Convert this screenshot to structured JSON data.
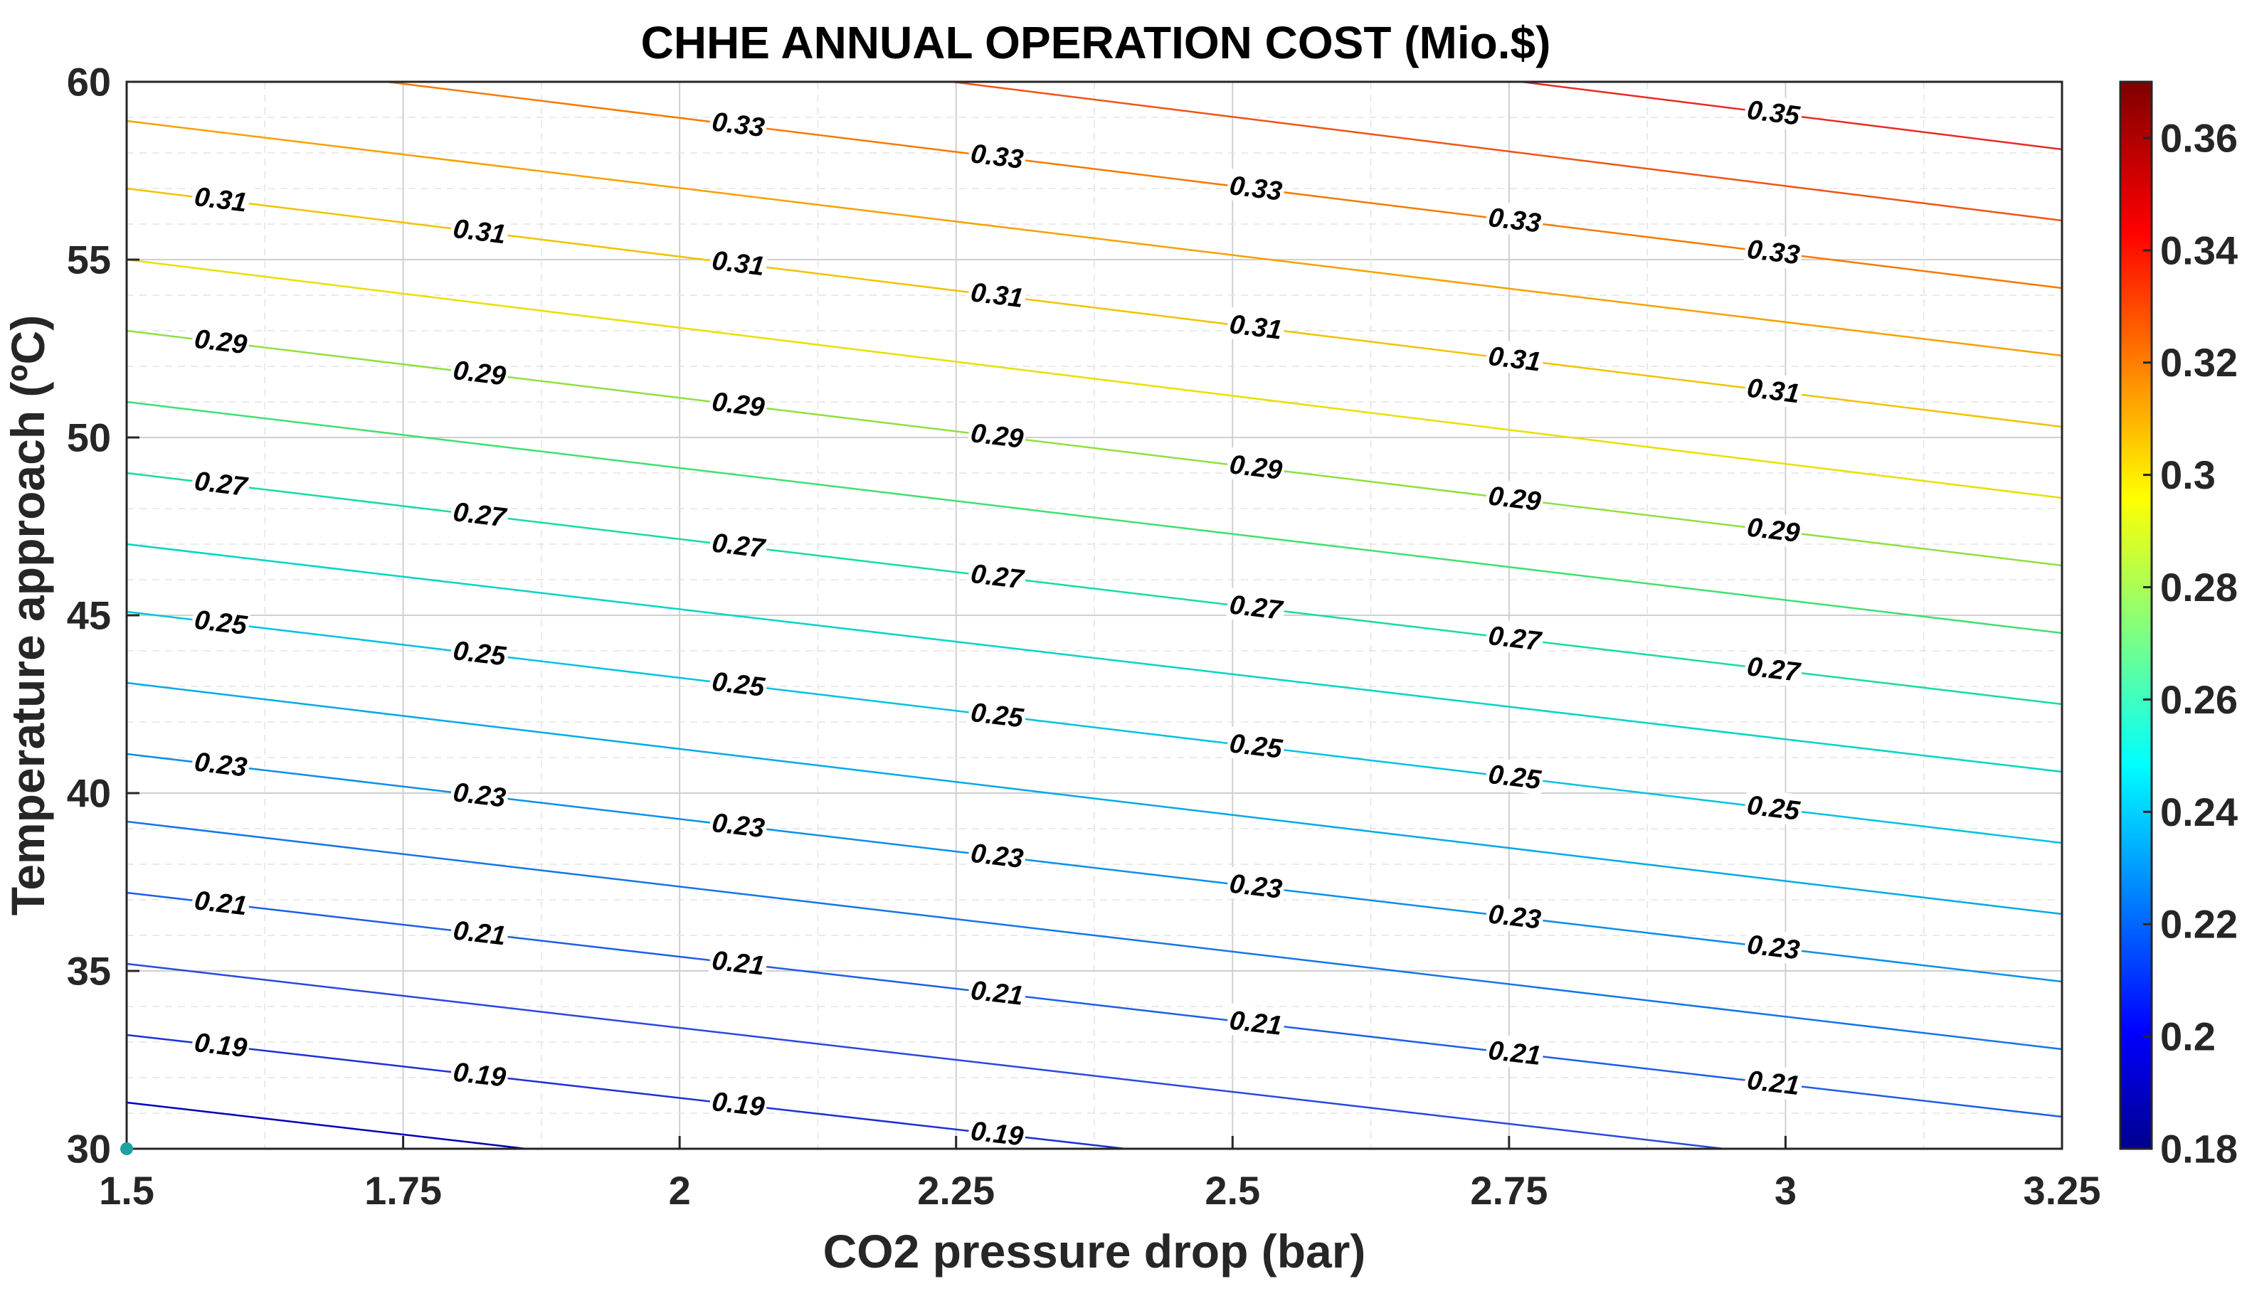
{
  "chart_data": {
    "type": "contour",
    "title": "CHHE ANNUAL OPERATION COST (Mio.$)",
    "xlabel": "CO2 pressure drop (bar)",
    "ylabel": "Temperature approach (ºC)",
    "xlim": [
      1.5,
      3.25
    ],
    "ylim": [
      30,
      60
    ],
    "x_ticks": [
      "1.5",
      "1.75",
      "2",
      "2.25",
      "2.5",
      "2.75",
      "3",
      "3.25"
    ],
    "y_ticks": [
      "30",
      "35",
      "40",
      "45",
      "50",
      "55",
      "60"
    ],
    "grid": true,
    "colorbar": {
      "range": [
        0.18,
        0.37
      ],
      "ticks": [
        "0.18",
        "0.2",
        "0.22",
        "0.24",
        "0.26",
        "0.28",
        "0.3",
        "0.32",
        "0.34",
        "0.36"
      ],
      "colormap": "jet"
    },
    "contour_levels": [
      {
        "level": 0.18,
        "color": "#0000b8",
        "y_at_x_min": 31.3,
        "y_at_x_max": 25.0,
        "label": ""
      },
      {
        "level": 0.19,
        "color": "#1f2fd6",
        "y_at_x_min": 33.2,
        "y_at_x_max": 27.0,
        "label": "0.19"
      },
      {
        "level": 0.2,
        "color": "#2848e0",
        "y_at_x_min": 35.2,
        "y_at_x_max": 28.9,
        "label": ""
      },
      {
        "level": 0.21,
        "color": "#1c5ee6",
        "y_at_x_min": 37.2,
        "y_at_x_max": 30.9,
        "label": "0.21"
      },
      {
        "level": 0.22,
        "color": "#1475e8",
        "y_at_x_min": 39.2,
        "y_at_x_max": 32.8,
        "label": ""
      },
      {
        "level": 0.23,
        "color": "#0a8fe8",
        "y_at_x_min": 41.1,
        "y_at_x_max": 34.7,
        "label": "0.23"
      },
      {
        "level": 0.24,
        "color": "#02a9e6",
        "y_at_x_min": 43.1,
        "y_at_x_max": 36.6,
        "label": ""
      },
      {
        "level": 0.25,
        "color": "#00c3e0",
        "y_at_x_min": 45.1,
        "y_at_x_max": 38.6,
        "label": "0.25"
      },
      {
        "level": 0.26,
        "color": "#00d6c4",
        "y_at_x_min": 47.0,
        "y_at_x_max": 40.6,
        "label": ""
      },
      {
        "level": 0.27,
        "color": "#15dca4",
        "y_at_x_min": 49.0,
        "y_at_x_max": 42.5,
        "label": "0.27"
      },
      {
        "level": 0.28,
        "color": "#3fe070",
        "y_at_x_min": 51.0,
        "y_at_x_max": 44.5,
        "label": ""
      },
      {
        "level": 0.29,
        "color": "#8fe040",
        "y_at_x_min": 53.0,
        "y_at_x_max": 46.4,
        "label": "0.29"
      },
      {
        "level": 0.3,
        "color": "#e8e000",
        "y_at_x_min": 55.0,
        "y_at_x_max": 48.3,
        "label": ""
      },
      {
        "level": 0.31,
        "color": "#f2c200",
        "y_at_x_min": 57.0,
        "y_at_x_max": 50.3,
        "label": "0.31"
      },
      {
        "level": 0.32,
        "color": "#f7a000",
        "y_at_x_min": 58.9,
        "y_at_x_max": 52.3,
        "label": ""
      },
      {
        "level": 0.33,
        "color": "#f57a00",
        "y_at_x_min": 60.9,
        "y_at_x_max": 54.2,
        "label": "0.33"
      },
      {
        "level": 0.34,
        "color": "#f25218",
        "y_at_x_min": 62.9,
        "y_at_x_max": 56.1,
        "label": ""
      },
      {
        "level": 0.35,
        "color": "#e82a20",
        "y_at_x_min": 64.9,
        "y_at_x_max": 58.1,
        "label": "0.35"
      },
      {
        "level": 0.36,
        "color": "#d81010",
        "y_at_x_min": 66.8,
        "y_at_x_max": 60.0,
        "label": ""
      }
    ],
    "marker": {
      "x": 1.5,
      "y": 30,
      "color": "#20a0a0"
    }
  }
}
